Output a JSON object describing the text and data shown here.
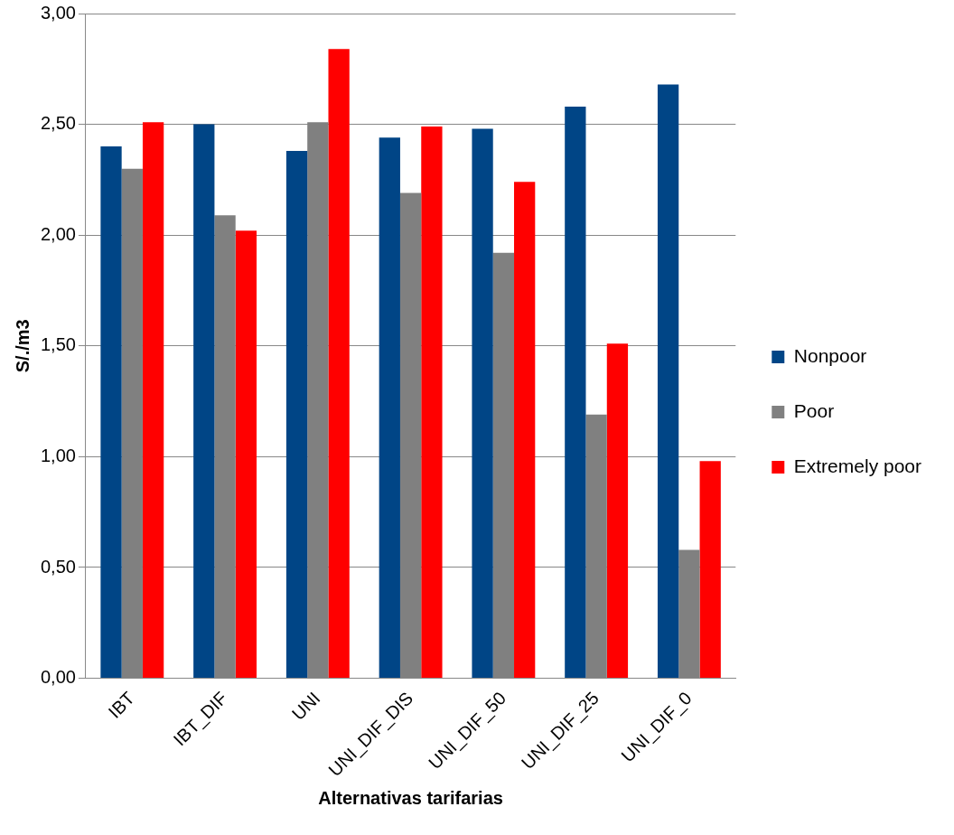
{
  "chart_data": {
    "type": "bar",
    "xlabel": "Alternativas tarifarias",
    "ylabel": "S/./m3",
    "categories": [
      "IBT",
      "IBT_DIF",
      "UNI",
      "UNI_DIF_DIS",
      "UNI_DIF_50",
      "UNI_DIF_25",
      "UNI_DIF_0"
    ],
    "series": [
      {
        "name": "Nonpoor",
        "color": "#004586",
        "values": [
          2.4,
          2.5,
          2.38,
          2.44,
          2.48,
          2.58,
          2.68
        ]
      },
      {
        "name": "Poor",
        "color": "#808080",
        "values": [
          2.3,
          2.09,
          2.51,
          2.19,
          1.92,
          1.19,
          0.58
        ]
      },
      {
        "name": "Extremely poor",
        "color": "#ff0000",
        "values": [
          2.51,
          2.02,
          2.84,
          2.49,
          2.24,
          1.51,
          0.98
        ]
      }
    ],
    "ylim": [
      0,
      3
    ],
    "yticks": [
      {
        "value": 0,
        "label": "0,00"
      },
      {
        "value": 0.5,
        "label": "0,50"
      },
      {
        "value": 1,
        "label": "1,00"
      },
      {
        "value": 1.5,
        "label": "1,50"
      },
      {
        "value": 2,
        "label": "2,00"
      },
      {
        "value": 2.5,
        "label": "2,50"
      },
      {
        "value": 3,
        "label": "3,00"
      }
    ],
    "grid": "y",
    "legend": "right"
  }
}
